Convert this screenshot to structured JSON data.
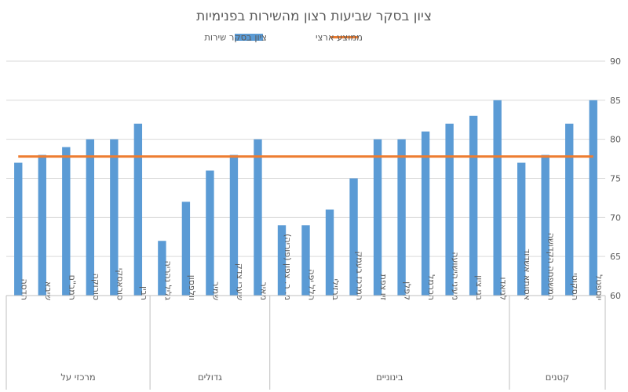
{
  "chart_data": {
    "type": "bar",
    "title": "ציון בסקר שביעות רצון מהשירות בפנימיות",
    "legend_position": "top",
    "y_axis_side": "right",
    "ylim": [
      60,
      90
    ],
    "yticks": [
      60,
      65,
      70,
      75,
      80,
      85,
      90
    ],
    "grid": true,
    "series": [
      {
        "name": "ציון בסקר שירות",
        "type": "bar",
        "color": "#5B9BD5"
      },
      {
        "name": "ממוצע ארצי",
        "type": "line",
        "color": "#ED7D31",
        "value": 77.8
      }
    ],
    "groups": [
      {
        "name": "קטנים",
        "items": [
          {
            "label": "יוספטל",
            "value": 85
          },
          {
            "label": "הסקוטי",
            "value": 82
          },
          {
            "label": "המשפחה הקדושה",
            "value": 78
          },
          {
            "label": "אסותא אשדוד",
            "value": 77
          }
        ]
      },
      {
        "name": "בינוניים",
        "items": [
          {
            "label": "לניאדו",
            "value": 85
          },
          {
            "label": "בני ציון",
            "value": 83
          },
          {
            "label": "מעיני הישועה",
            "value": 82
          },
          {
            "label": "הכרמל",
            "value": 81
          },
          {
            "label": "קפלן",
            "value": 80
          },
          {
            "label": "זיו צפת",
            "value": 80
          },
          {
            "label": "המרכז בעמק",
            "value": 75
          },
          {
            "label": "ברזילי",
            "value": 71
          },
          {
            "label": "הלל יפה",
            "value": 69
          },
          {
            "label": "מ. ר. צפון (פוריה)",
            "value": 69
          }
        ]
      },
      {
        "name": "גדולים",
        "items": [
          {
            "label": "מאיר",
            "value": 80
          },
          {
            "label": "שערי צדק",
            "value": 78
          },
          {
            "label": "שמיר",
            "value": 76
          },
          {
            "label": "וולפסון",
            "value": 72
          },
          {
            "label": "גליל נהריה",
            "value": 67
          }
        ]
      },
      {
        "name": "מרכזי על",
        "items": [
          {
            "label": "רבין",
            "value": 82
          },
          {
            "label": "סוראסקי",
            "value": 80
          },
          {
            "label": "סורוקה",
            "value": 80
          },
          {
            "label": "רמב\"ם",
            "value": 79
          },
          {
            "label": "שיבא",
            "value": 78
          },
          {
            "label": "הדסה",
            "value": 77
          }
        ]
      }
    ]
  }
}
